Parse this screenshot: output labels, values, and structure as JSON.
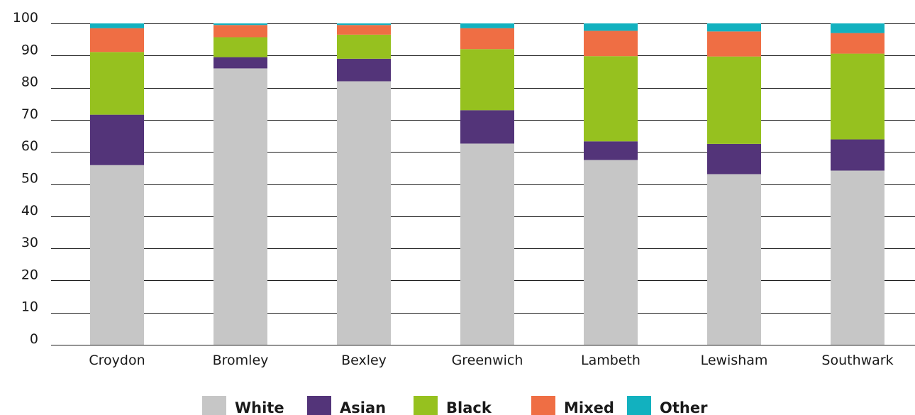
{
  "chart_data": {
    "type": "bar",
    "stacked": true,
    "categories": [
      "Croydon",
      "Bromley",
      "Bexley",
      "Greenwich",
      "Lambeth",
      "Lewisham",
      "Southwark"
    ],
    "series": [
      {
        "name": "White",
        "color": "#c6c6c6",
        "values": [
          55.9,
          86.0,
          82.0,
          62.6,
          57.5,
          53.1,
          54.2
        ]
      },
      {
        "name": "Asian",
        "color": "#533479",
        "values": [
          15.7,
          3.5,
          7.0,
          10.4,
          5.8,
          9.4,
          9.7
        ]
      },
      {
        "name": "Black",
        "color": "#96c11f",
        "values": [
          19.5,
          6.2,
          7.5,
          19.0,
          26.5,
          27.2,
          26.7
        ]
      },
      {
        "name": "Mixed",
        "color": "#ef6e44",
        "values": [
          7.4,
          3.8,
          3.0,
          6.5,
          7.9,
          7.8,
          6.4
        ]
      },
      {
        "name": "Other",
        "color": "#12b1bf",
        "values": [
          1.5,
          0.5,
          0.5,
          1.5,
          2.3,
          2.5,
          3.0
        ]
      }
    ],
    "title": "",
    "xlabel": "",
    "ylabel": "",
    "ylim": [
      0,
      100
    ],
    "yticks": [
      0,
      10,
      20,
      30,
      40,
      50,
      60,
      70,
      80,
      90,
      100
    ],
    "grid": true,
    "legend_position": "bottom"
  }
}
